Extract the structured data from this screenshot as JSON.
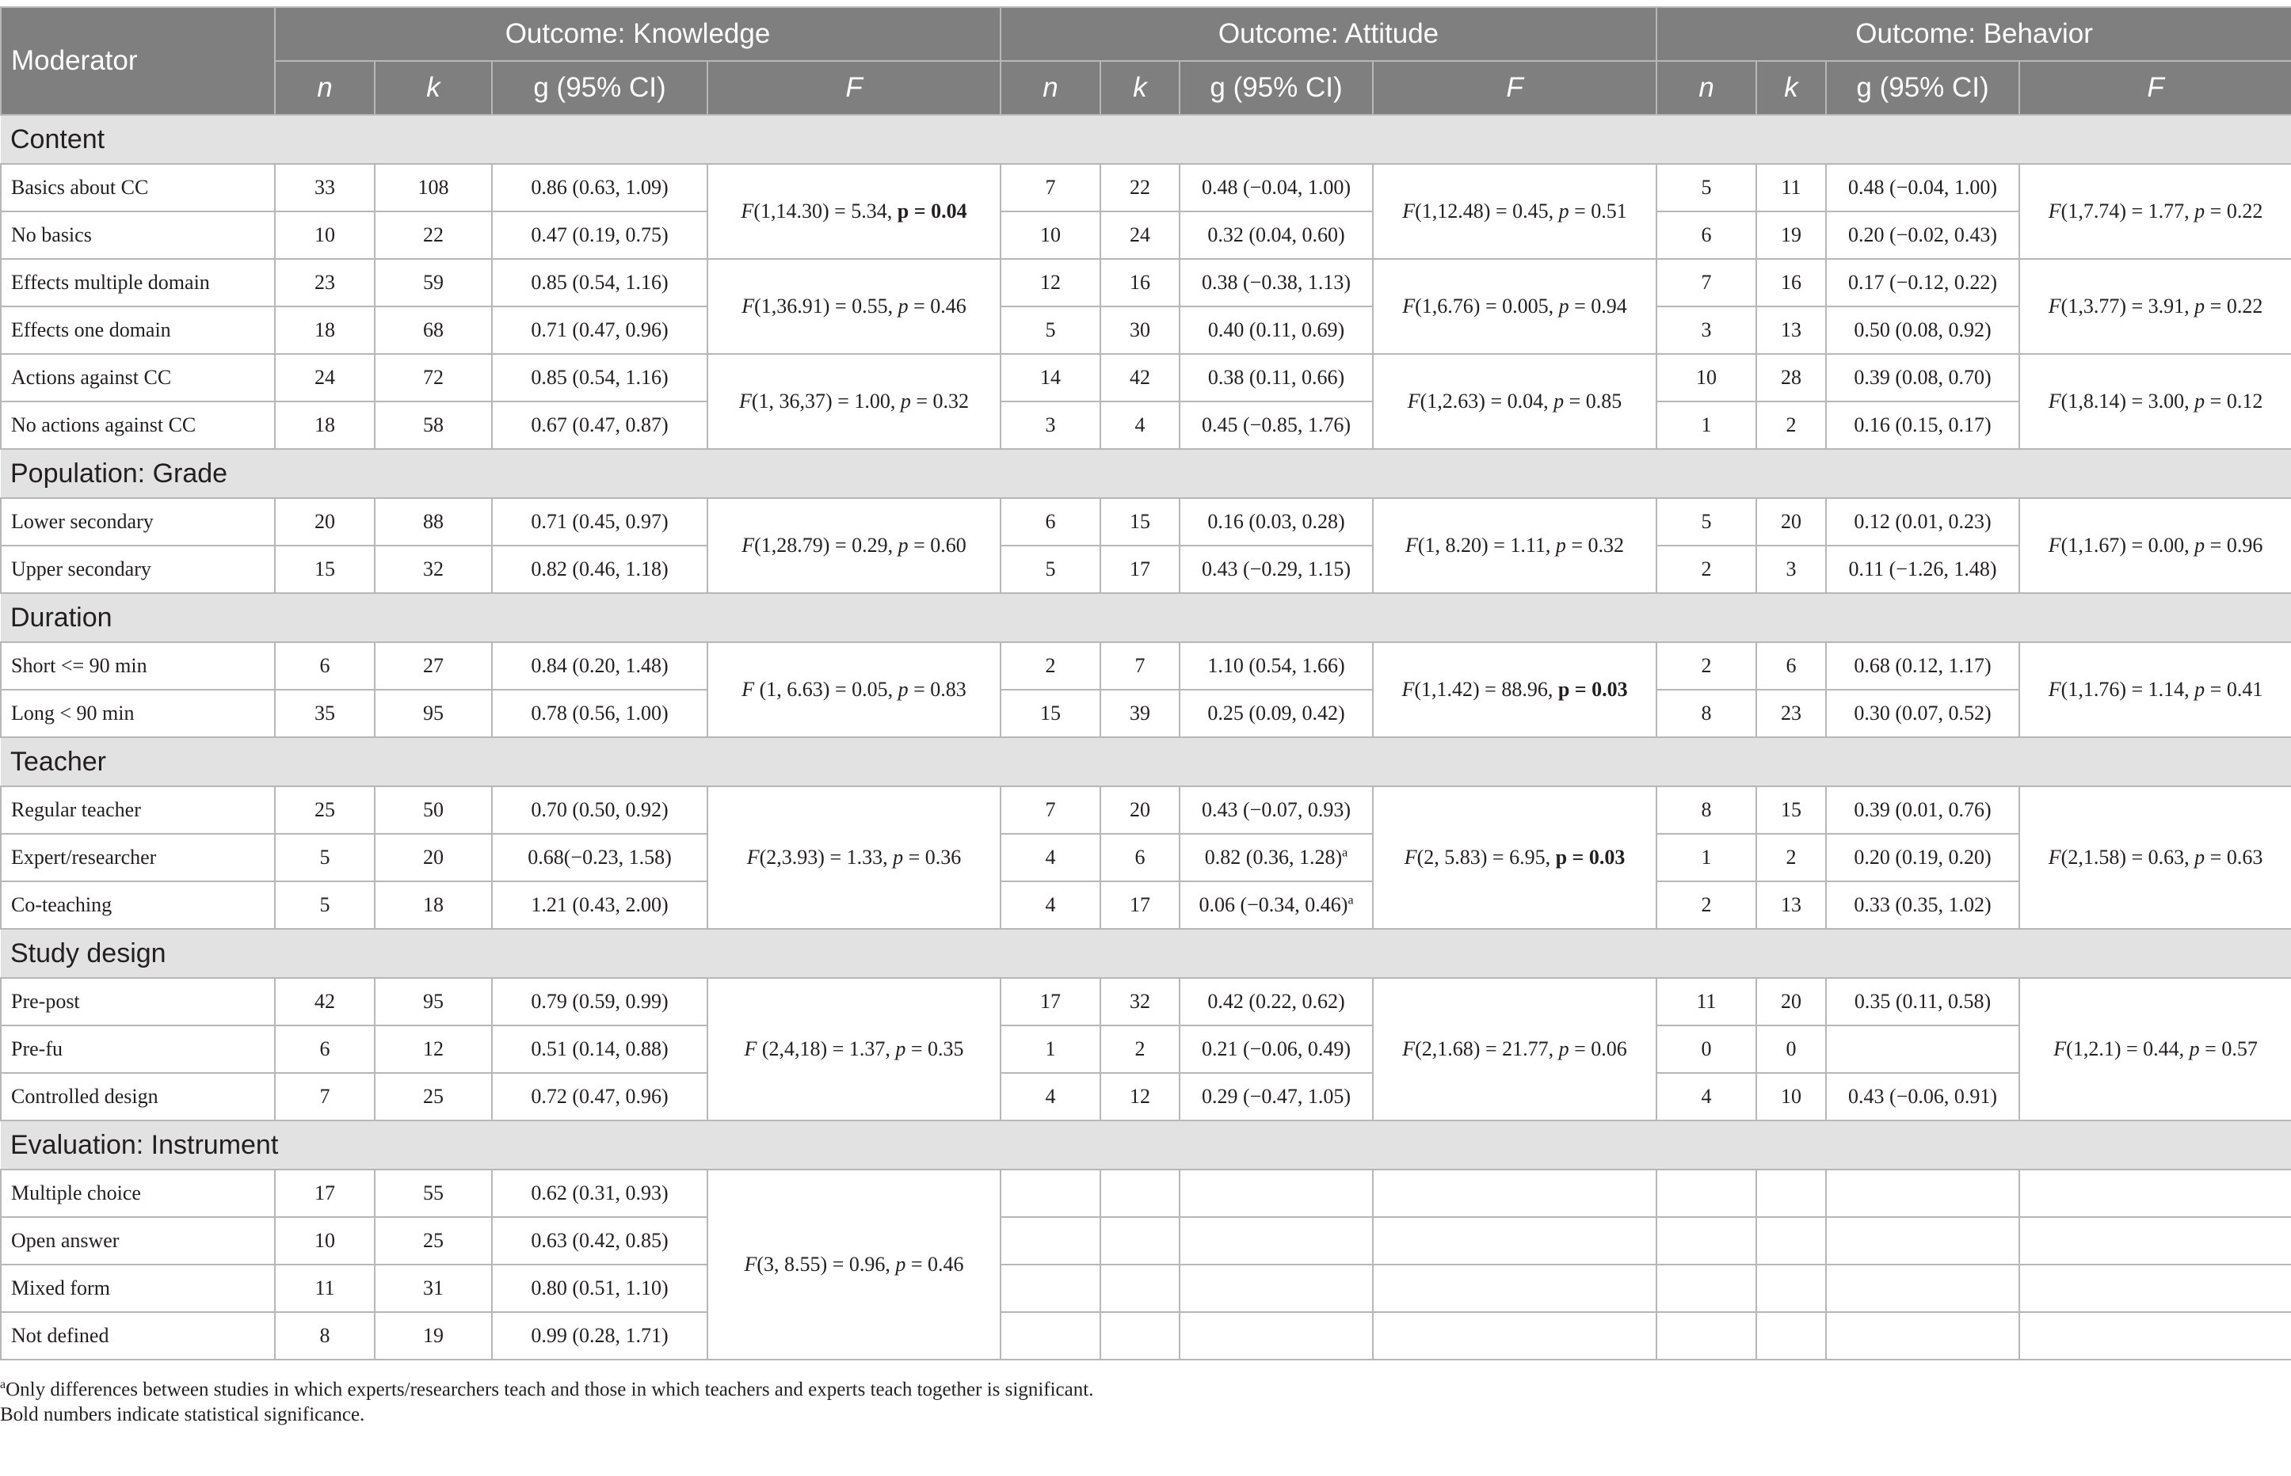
{
  "header": {
    "moderator": "Moderator",
    "groups": [
      "Outcome: Knowledge",
      "Outcome: Attitude",
      "Outcome: Behavior"
    ],
    "subcols": [
      "n",
      "k",
      "g (95% CI)",
      "F"
    ]
  },
  "sections": [
    {
      "title": "Content",
      "rows": [
        {
          "label": "Basics about CC",
          "kn": "33",
          "kk": "108",
          "kg": "0.86 (0.63, 1.09)",
          "an": "7",
          "ak": "22",
          "ag": "0.48 (−0.04, 1.00)",
          "bn": "5",
          "bk": "11",
          "bg": "0.48 (−0.04, 1.00)"
        },
        {
          "label": "No basics",
          "kn": "10",
          "kk": "22",
          "kg": "0.47 (0.19, 0.75)",
          "an": "10",
          "ak": "24",
          "ag": "0.32 (0.04, 0.60)",
          "bn": "6",
          "bk": "19",
          "bg": "0.20 (−0.02, 0.43)"
        },
        {
          "label": "Effects multiple domain",
          "kn": "23",
          "kk": "59",
          "kg": "0.85 (0.54, 1.16)",
          "an": "12",
          "ak": "16",
          "ag": "0.38 (−0.38, 1.13)",
          "bn": "7",
          "bk": "16",
          "bg": "0.17 (−0.12, 0.22)"
        },
        {
          "label": "Effects one domain",
          "kn": "18",
          "kk": "68",
          "kg": "0.71 (0.47, 0.96)",
          "an": "5",
          "ak": "30",
          "ag": "0.40 (0.11, 0.69)",
          "bn": "3",
          "bk": "13",
          "bg": "0.50 (0.08, 0.92)"
        },
        {
          "label": "Actions against CC",
          "kn": "24",
          "kk": "72",
          "kg": "0.85 (0.54, 1.16)",
          "an": "14",
          "ak": "42",
          "ag": "0.38 (0.11, 0.66)",
          "bn": "10",
          "bk": "28",
          "bg": "0.39 (0.08, 0.70)"
        },
        {
          "label": "No actions against CC",
          "kn": "18",
          "kk": "58",
          "kg": "0.67 (0.47, 0.87)",
          "an": "3",
          "ak": "4",
          "ag": "0.45 (−0.85, 1.76)",
          "bn": "1",
          "bk": "2",
          "bg": "0.16 (0.15, 0.17)"
        }
      ],
      "fgroups": [
        {
          "k": [
            "F",
            "(1,14.30) = 5.34, ",
            "p = 0.04",
            ""
          ],
          "a": [
            "F",
            "(1,12.48) = 0.45, ",
            "p",
            " = 0.51"
          ],
          "b": [
            "F",
            "(1,7.74) = 1.77, ",
            "p",
            " = 0.22"
          ],
          "kbold": true,
          "abold": false,
          "bbold": false
        },
        {
          "k": [
            "F",
            "(1,36.91) = 0.55, ",
            "p",
            " = 0.46"
          ],
          "a": [
            "F",
            "(1,6.76) = 0.005, ",
            "p",
            " = 0.94"
          ],
          "b": [
            "F",
            "(1,3.77) = 3.91, ",
            "p",
            " = 0.22"
          ],
          "kbold": false,
          "abold": false,
          "bbold": false
        },
        {
          "k": [
            "F",
            "(1, 36,37) = 1.00, ",
            "p",
            " = 0.32"
          ],
          "a": [
            "F",
            "(1,2.63) = 0.04, ",
            "p",
            " = 0.85"
          ],
          "b": [
            "F",
            "(1,8.14) = 3.00, ",
            "p",
            " = 0.12"
          ],
          "kbold": false,
          "abold": false,
          "bbold": false
        }
      ]
    },
    {
      "title": "Population: Grade",
      "rows": [
        {
          "label": "Lower secondary",
          "kn": "20",
          "kk": "88",
          "kg": "0.71 (0.45, 0.97)",
          "an": "6",
          "ak": "15",
          "ag": "0.16 (0.03, 0.28)",
          "bn": "5",
          "bk": "20",
          "bg": "0.12 (0.01, 0.23)"
        },
        {
          "label": "Upper secondary",
          "kn": "15",
          "kk": "32",
          "kg": "0.82 (0.46, 1.18)",
          "an": "5",
          "ak": "17",
          "ag": "0.43 (−0.29, 1.15)",
          "bn": "2",
          "bk": "3",
          "bg": "0.11 (−1.26, 1.48)"
        }
      ],
      "fgroups": [
        {
          "k": [
            "F",
            "(1,28.79) = 0.29, ",
            "p",
            " = 0.60"
          ],
          "a": [
            "F",
            "(1, 8.20) = 1.11, ",
            "p",
            " = 0.32"
          ],
          "b": [
            "F",
            "(1,1.67) = 0.00, ",
            "p",
            " = 0.96"
          ],
          "kbold": false,
          "abold": false,
          "bbold": false
        }
      ]
    },
    {
      "title": "Duration",
      "rows": [
        {
          "label": "Short <= 90 min",
          "kn": "6",
          "kk": "27",
          "kg": "0.84 (0.20, 1.48)",
          "an": "2",
          "ak": "7",
          "ag": "1.10 (0.54, 1.66)",
          "bn": "2",
          "bk": "6",
          "bg": "0.68 (0.12, 1.17)"
        },
        {
          "label": "Long < 90 min",
          "kn": "35",
          "kk": "95",
          "kg": "0.78 (0.56, 1.00)",
          "an": "15",
          "ak": "39",
          "ag": "0.25 (0.09, 0.42)",
          "bn": "8",
          "bk": "23",
          "bg": "0.30 (0.07, 0.52)"
        }
      ],
      "fgroups": [
        {
          "k": [
            "F",
            " (1, 6.63) = 0.05, ",
            "p",
            " = 0.83"
          ],
          "a": [
            "F",
            "(1,1.42) = 88.96, ",
            "p = 0.03",
            ""
          ],
          "b": [
            "F",
            "(1,1.76) = 1.14, ",
            "p",
            " = 0.41"
          ],
          "kbold": false,
          "abold": true,
          "bbold": false
        }
      ]
    },
    {
      "title": "Teacher",
      "rows": [
        {
          "label": "Regular teacher",
          "kn": "25",
          "kk": "50",
          "kg": "0.70 (0.50, 0.92)",
          "an": "7",
          "ak": "20",
          "ag": "0.43 (−0.07, 0.93)",
          "bn": "8",
          "bk": "15",
          "bg": "0.39 (0.01, 0.76)"
        },
        {
          "label": "Expert/researcher",
          "kn": "5",
          "kk": "20",
          "kg": "0.68(−0.23, 1.58)",
          "an": "4",
          "ak": "6",
          "ag": "0.82 (0.36, 1.28)",
          "agsup": "a",
          "bn": "1",
          "bk": "2",
          "bg": "0.20 (0.19, 0.20)"
        },
        {
          "label": "Co-teaching",
          "kn": "5",
          "kk": "18",
          "kg": "1.21 (0.43, 2.00)",
          "an": "4",
          "ak": "17",
          "ag": "0.06 (−0.34, 0.46)",
          "agsup": "a",
          "bn": "2",
          "bk": "13",
          "bg": "0.33 (0.35, 1.02)"
        }
      ],
      "fgroups": [
        {
          "k": [
            "F",
            "(2,3.93) = 1.33, ",
            "p",
            " = 0.36"
          ],
          "a": [
            "F",
            "(2, 5.83) = 6.95, ",
            "p = 0.03",
            ""
          ],
          "b": [
            "F",
            "(2,1.58) = 0.63, ",
            "p",
            " = 0.63"
          ],
          "kbold": false,
          "abold": true,
          "bbold": false
        }
      ]
    },
    {
      "title": "Study design",
      "rows": [
        {
          "label": "Pre-post",
          "kn": "42",
          "kk": "95",
          "kg": "0.79 (0.59, 0.99)",
          "an": "17",
          "ak": "32",
          "ag": "0.42 (0.22, 0.62)",
          "bn": "11",
          "bk": "20",
          "bg": "0.35 (0.11, 0.58)"
        },
        {
          "label": "Pre-fu",
          "kn": "6",
          "kk": "12",
          "kg": "0.51 (0.14, 0.88)",
          "an": "1",
          "ak": "2",
          "ag": "0.21 (−0.06, 0.49)",
          "bn": "0",
          "bk": "0",
          "bg": ""
        },
        {
          "label": "Controlled design",
          "kn": "7",
          "kk": "25",
          "kg": "0.72 (0.47, 0.96)",
          "an": "4",
          "ak": "12",
          "ag": "0.29 (−0.47, 1.05)",
          "bn": "4",
          "bk": "10",
          "bg": "0.43 (−0.06, 0.91)"
        }
      ],
      "fgroups": [
        {
          "k": [
            "F",
            " (2,4,18) = 1.37, ",
            "p",
            " = 0.35"
          ],
          "a": [
            "F",
            "(2,1.68) = 21.77, ",
            "p",
            " = 0.06"
          ],
          "b": [
            "F",
            "(1,2.1) = 0.44, ",
            "p",
            " = 0.57"
          ],
          "kbold": false,
          "abold": false,
          "bbold": false
        }
      ]
    },
    {
      "title": "Evaluation: Instrument",
      "rows": [
        {
          "label": "Multiple choice",
          "kn": "17",
          "kk": "55",
          "kg": "0.62 (0.31, 0.93)",
          "an": "",
          "ak": "",
          "ag": "",
          "bn": "",
          "bk": "",
          "bg": ""
        },
        {
          "label": "Open answer",
          "kn": "10",
          "kk": "25",
          "kg": "0.63 (0.42, 0.85)",
          "an": "",
          "ak": "",
          "ag": "",
          "bn": "",
          "bk": "",
          "bg": ""
        },
        {
          "label": "Mixed form",
          "kn": "11",
          "kk": "31",
          "kg": "0.80 (0.51, 1.10)",
          "an": "",
          "ak": "",
          "ag": "",
          "bn": "",
          "bk": "",
          "bg": ""
        },
        {
          "label": "Not defined",
          "kn": "8",
          "kk": "19",
          "kg": "0.99 (0.28, 1.71)",
          "an": "",
          "ak": "",
          "ag": "",
          "bn": "",
          "bk": "",
          "bg": ""
        }
      ],
      "fgroups": [
        {
          "k": [
            "F",
            "(3, 8.55) = 0.96, ",
            "p",
            " = 0.46"
          ],
          "a": null,
          "b": null,
          "kbold": false,
          "abold": false,
          "bbold": false
        }
      ]
    }
  ],
  "notes": {
    "sup": "a",
    "note1": "Only differences between studies in which experts/researchers teach and those in which teachers and experts teach together is significant.",
    "note2": "Bold numbers indicate statistical significance."
  }
}
